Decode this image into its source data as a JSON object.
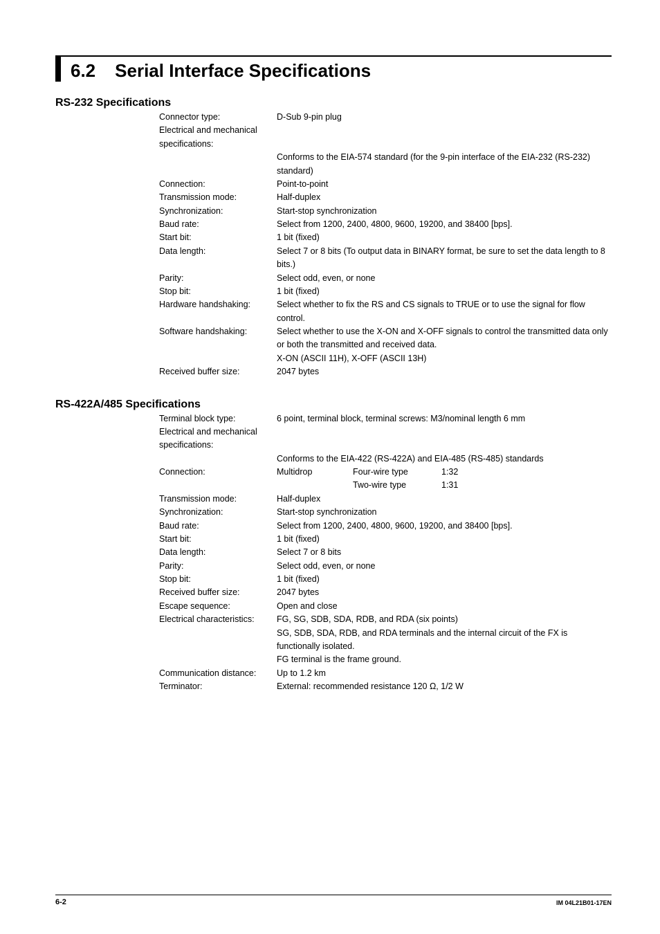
{
  "section": {
    "number": "6.2",
    "title": "Serial Interface Specifications"
  },
  "rs232": {
    "heading": "RS-232 Specifications",
    "rows": [
      {
        "label": "Connector type:",
        "value": "D-Sub 9-pin plug"
      },
      {
        "label": "Electrical and mechanical specifications:",
        "value": ""
      },
      {
        "label": "",
        "value": "Conforms to the EIA-574 standard (for the 9-pin interface of the EIA-232 (RS-232) standard)"
      },
      {
        "label": "Connection:",
        "value": "Point-to-point"
      },
      {
        "label": "Transmission mode:",
        "value": "Half-duplex"
      },
      {
        "label": "Synchronization:",
        "value": "Start-stop synchronization"
      },
      {
        "label": "Baud rate:",
        "value": "Select from 1200, 2400, 4800, 9600, 19200, and 38400 [bps]."
      },
      {
        "label": "Start bit:",
        "value": "1 bit (fixed)"
      },
      {
        "label": "Data length:",
        "value": "Select 7 or 8 bits (To output data in BINARY format, be sure to set the data length to 8 bits.)"
      },
      {
        "label": "Parity:",
        "value": "Select odd, even, or none"
      },
      {
        "label": "Stop bit:",
        "value": "1 bit (fixed)"
      },
      {
        "label": "Hardware handshaking:",
        "value": "Select whether to fix the RS and CS signals to TRUE or to use the signal for flow control."
      },
      {
        "label": "Software handshaking:",
        "value": "Select whether to use the X-ON and X-OFF signals to control the transmitted data only or both the transmitted and received data."
      },
      {
        "label": "",
        "value": "X-ON (ASCII 11H), X-OFF (ASCII 13H)"
      },
      {
        "label": "Received buffer size:",
        "value": "2047 bytes"
      }
    ]
  },
  "rs422": {
    "heading": "RS-422A/485 Specifications",
    "rows": [
      {
        "label": "Terminal block type:",
        "value": "6 point, terminal block, terminal screws: M3/nominal length 6 mm"
      },
      {
        "label": "Electrical and mechanical specifications:",
        "value": ""
      },
      {
        "label": "",
        "value": "Conforms to the EIA-422 (RS-422A) and EIA-485 (RS-485) standards"
      },
      {
        "label": "Connection:",
        "type": "multi",
        "c1": "Multidrop",
        "c2": "Four-wire type",
        "c3": "1:32"
      },
      {
        "label": "",
        "type": "multi",
        "c1": "",
        "c2": "Two-wire type",
        "c3": "1:31"
      },
      {
        "label": "Transmission mode:",
        "value": "Half-duplex"
      },
      {
        "label": "Synchronization:",
        "value": "Start-stop synchronization"
      },
      {
        "label": "Baud rate:",
        "value": "Select from 1200, 2400, 4800, 9600, 19200, and 38400 [bps]."
      },
      {
        "label": "Start bit:",
        "value": "1 bit (fixed)"
      },
      {
        "label": "Data length:",
        "value": "Select 7 or 8 bits"
      },
      {
        "label": "Parity:",
        "value": "Select odd, even, or none"
      },
      {
        "label": "Stop bit:",
        "value": "1 bit (fixed)"
      },
      {
        "label": "Received buffer size:",
        "value": "2047 bytes"
      },
      {
        "label": "Escape sequence:",
        "value": "Open and close"
      },
      {
        "label": "Electrical characteristics:",
        "value": "FG, SG, SDB, SDA, RDB, and RDA (six points)"
      },
      {
        "label": "",
        "value": "SG, SDB, SDA, RDB, and RDA terminals and the internal circuit of the FX is functionally isolated."
      },
      {
        "label": "",
        "value": "FG terminal is the frame ground."
      },
      {
        "label": "Communication distance:",
        "value": "Up to 1.2 km"
      },
      {
        "label": "Terminator:",
        "value": "External: recommended resistance 120 Ω, 1/2 W"
      }
    ]
  },
  "footer": {
    "left": "6-2",
    "right": "IM 04L21B01-17EN"
  }
}
